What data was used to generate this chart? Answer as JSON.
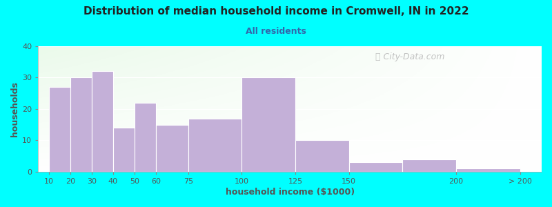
{
  "title": "Distribution of median household income in Cromwell, IN in 2022",
  "subtitle": "All residents",
  "xlabel": "household income ($1000)",
  "ylabel": "households",
  "background_color": "#00FFFF",
  "bar_color": "#c4b0d8",
  "bar_edge_color": "#ffffff",
  "title_color": "#222222",
  "subtitle_color": "#3366aa",
  "axis_label_color": "#555555",
  "tick_color": "#555555",
  "categories": [
    "10",
    "20",
    "30",
    "40",
    "50",
    "60",
    "75",
    "100",
    "125",
    "150",
    "200",
    "> 200"
  ],
  "values": [
    27,
    30,
    32,
    14,
    22,
    15,
    17,
    30,
    10,
    3,
    4,
    1
  ],
  "x_edges": [
    10,
    20,
    30,
    40,
    50,
    60,
    75,
    100,
    125,
    150,
    175,
    200,
    230
  ],
  "tick_positions": [
    10,
    20,
    30,
    40,
    50,
    60,
    75,
    100,
    125,
    150,
    200,
    230
  ],
  "xlim": [
    5,
    240
  ],
  "ylim": [
    0,
    40
  ],
  "yticks": [
    0,
    10,
    20,
    30,
    40
  ],
  "watermark": " City-Data.com",
  "title_fontsize": 11,
  "subtitle_fontsize": 9,
  "axis_label_fontsize": 9,
  "tick_fontsize": 8
}
